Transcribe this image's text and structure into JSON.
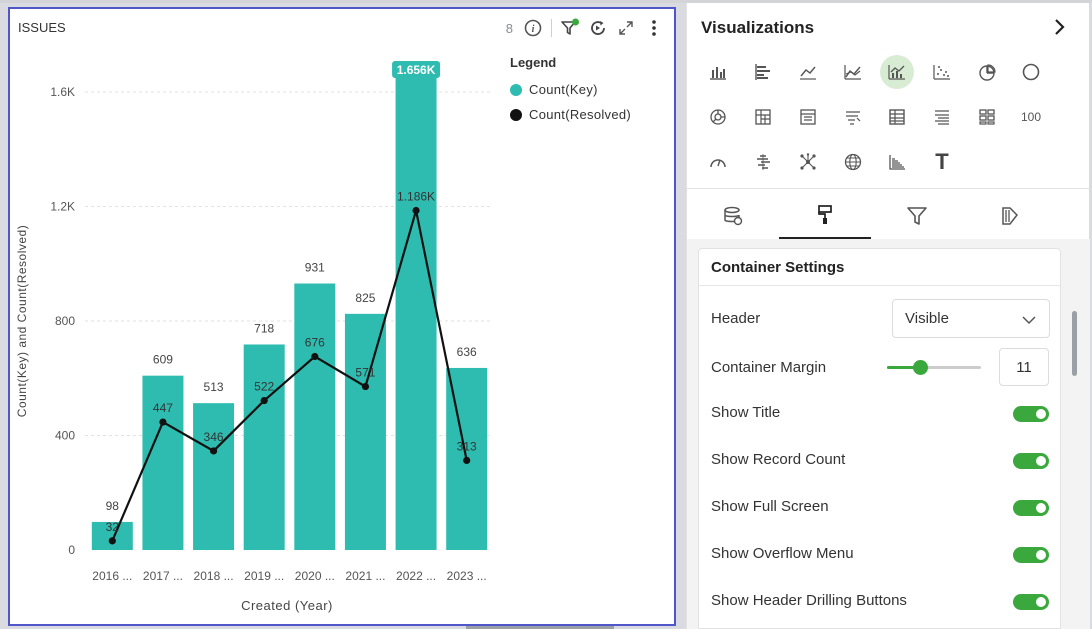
{
  "widget": {
    "title": "ISSUES",
    "record_count": "8",
    "icons": [
      "info-icon",
      "filter-icon",
      "refresh-icon",
      "expand-icon",
      "more-vertical-icon"
    ]
  },
  "legend": {
    "title": "Legend",
    "items": [
      {
        "label": "Count(Key)",
        "color": "#2fbcb0"
      },
      {
        "label": "Count(Resolved)",
        "color": "#111111"
      }
    ]
  },
  "chart_data": {
    "type": "bar",
    "categories": [
      "2016 ...",
      "2017 ...",
      "2018 ...",
      "2019 ...",
      "2020 ...",
      "2021 ...",
      "2022 ...",
      "2023 ..."
    ],
    "series": [
      {
        "name": "Count(Key)",
        "type": "bar",
        "color": "#2fbcb0",
        "values": [
          98,
          609,
          513,
          718,
          931,
          825,
          1656,
          636
        ],
        "labels": [
          "98",
          "609",
          "513",
          "718",
          "931",
          "825",
          "1.656K",
          "636"
        ]
      },
      {
        "name": "Count(Resolved)",
        "type": "line",
        "color": "#111111",
        "values": [
          32,
          447,
          346,
          522,
          676,
          571,
          1186,
          313
        ],
        "labels": [
          "32",
          "447",
          "346",
          "522",
          "676",
          "571",
          "1.186K",
          "313"
        ]
      }
    ],
    "yticks": [
      0,
      400,
      800,
      1200,
      1600
    ],
    "ytick_labels": [
      "0",
      "400",
      "800",
      "1.2K",
      "1.6K"
    ],
    "ylim": [
      0,
      1700
    ],
    "xlabel": "Created (Year)",
    "ylabel": "Count(Key) and Count(Resolved)",
    "grid": true,
    "legend_position": "top-right"
  },
  "panel": {
    "title": "Visualizations",
    "viz_types": [
      "column-chart-icon",
      "bar-chart-icon",
      "line-chart-icon",
      "area-chart-icon",
      "combo-chart-icon",
      "scatter-chart-icon",
      "pie-chart-icon",
      "donut-chart-icon",
      "sunburst-chart-icon",
      "pivot-table-icon",
      "summary-table-icon",
      "funnel-chart-icon",
      "table-icon",
      "detail-table-icon",
      "tile-grid-icon",
      "number-card-icon",
      "gauge-icon",
      "gantt-chart-icon",
      "network-chart-icon",
      "geo-map-icon",
      "waterfall-chart-icon",
      "text-icon"
    ],
    "number_card_text": "100",
    "text_widget_glyph": "T",
    "tabs": [
      "data-icon",
      "format-brush-icon",
      "filter-icon",
      "conditional-format-icon"
    ],
    "container_settings": {
      "title": "Container Settings",
      "header_label": "Header",
      "header_value": "Visible",
      "margin_label": "Container Margin",
      "margin_value": "11",
      "margin_fraction": 0.35,
      "toggles": [
        {
          "label": "Show Title",
          "on": true
        },
        {
          "label": "Show Record Count",
          "on": true
        },
        {
          "label": "Show Full Screen",
          "on": true
        },
        {
          "label": "Show Overflow Menu",
          "on": true
        },
        {
          "label": "Show Header Drilling Buttons",
          "on": true
        }
      ]
    }
  }
}
